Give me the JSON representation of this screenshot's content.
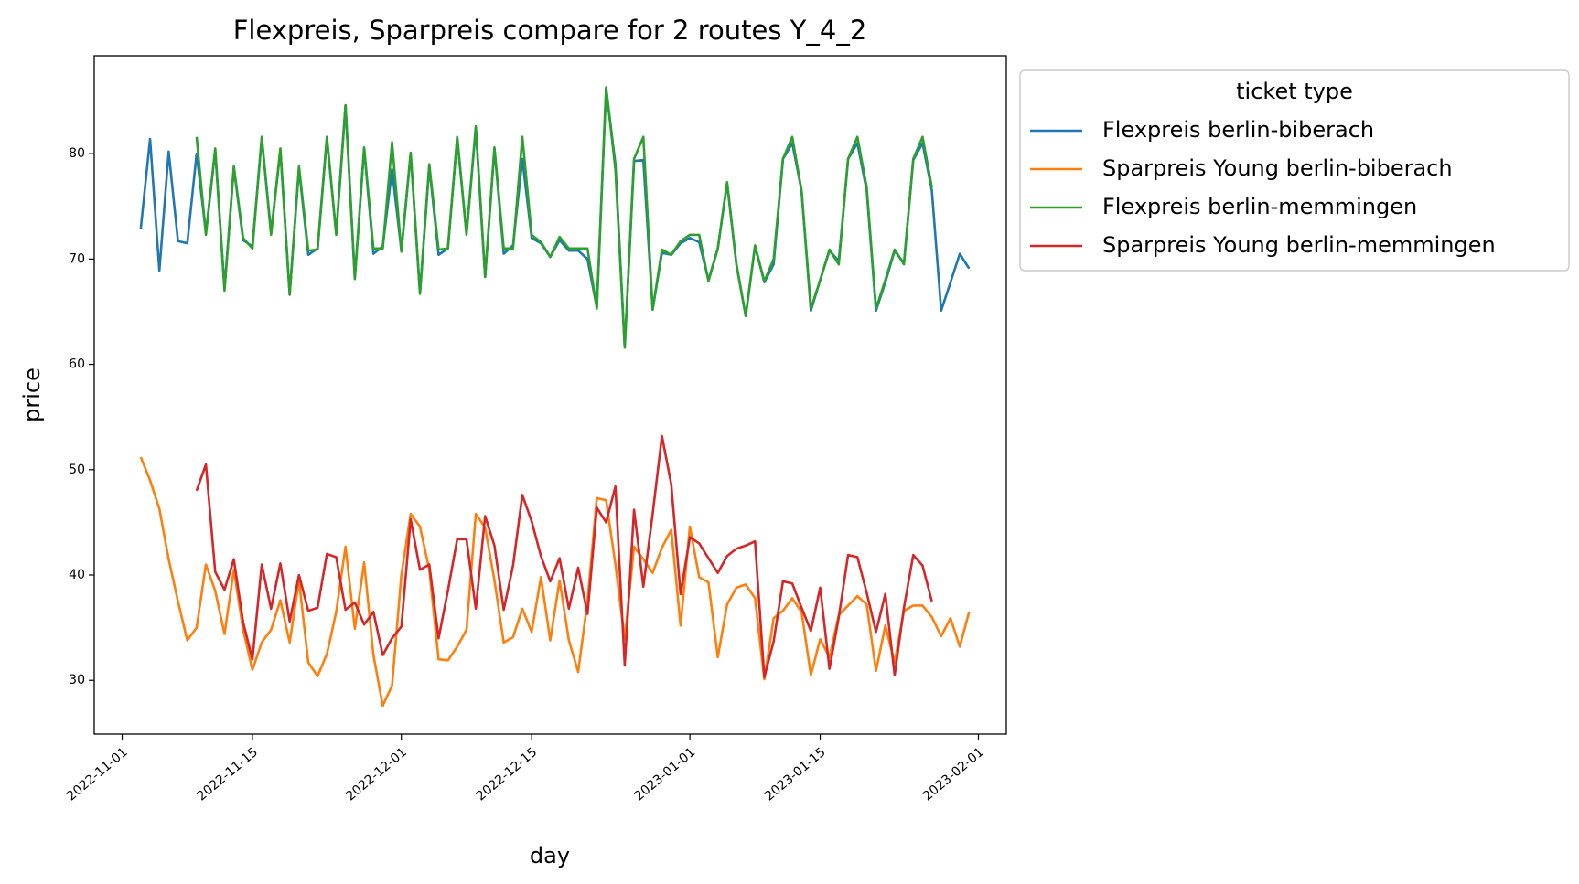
{
  "chart_data": {
    "type": "line",
    "title": "Flexpreis, Sparpreis compare for 2 routes Y_4_2",
    "x_label": "day",
    "y_label": "price",
    "legend_title": "ticket type",
    "legend_position": "outside-upper-right",
    "x": [
      "2022-11-03",
      "2022-11-04",
      "2022-11-05",
      "2022-11-06",
      "2022-11-07",
      "2022-11-08",
      "2022-11-09",
      "2022-11-10",
      "2022-11-11",
      "2022-11-12",
      "2022-11-13",
      "2022-11-14",
      "2022-11-15",
      "2022-11-16",
      "2022-11-17",
      "2022-11-18",
      "2022-11-19",
      "2022-11-20",
      "2022-11-21",
      "2022-11-22",
      "2022-11-23",
      "2022-11-24",
      "2022-11-25",
      "2022-11-26",
      "2022-11-27",
      "2022-11-28",
      "2022-11-29",
      "2022-11-30",
      "2022-12-01",
      "2022-12-02",
      "2022-12-03",
      "2022-12-04",
      "2022-12-05",
      "2022-12-06",
      "2022-12-07",
      "2022-12-08",
      "2022-12-09",
      "2022-12-10",
      "2022-12-11",
      "2022-12-12",
      "2022-12-13",
      "2022-12-14",
      "2022-12-15",
      "2022-12-16",
      "2022-12-17",
      "2022-12-18",
      "2022-12-19",
      "2022-12-20",
      "2022-12-21",
      "2022-12-22",
      "2022-12-23",
      "2022-12-24",
      "2022-12-25",
      "2022-12-26",
      "2022-12-27",
      "2022-12-28",
      "2022-12-29",
      "2022-12-30",
      "2022-12-31",
      "2023-01-01",
      "2023-01-02",
      "2023-01-03",
      "2023-01-04",
      "2023-01-05",
      "2023-01-06",
      "2023-01-07",
      "2023-01-08",
      "2023-01-09",
      "2023-01-10",
      "2023-01-11",
      "2023-01-12",
      "2023-01-13",
      "2023-01-14",
      "2023-01-15",
      "2023-01-16",
      "2023-01-17",
      "2023-01-18",
      "2023-01-19",
      "2023-01-20",
      "2023-01-21",
      "2023-01-22",
      "2023-01-23",
      "2023-01-24",
      "2023-01-25",
      "2023-01-26",
      "2023-01-27",
      "2023-01-28",
      "2023-01-29",
      "2023-01-30",
      "2023-01-31"
    ],
    "series": [
      {
        "name": "Flexpreis berlin-biberach",
        "color": "#1f77b4",
        "values": [
          72.9,
          81.4,
          68.9,
          80.2,
          71.7,
          71.5,
          80.0,
          72.5,
          80.3,
          67.2,
          78.7,
          71.8,
          71.2,
          81.5,
          72.5,
          80.3,
          66.7,
          78.6,
          70.4,
          71.0,
          81.5,
          72.4,
          84.6,
          68.2,
          80.5,
          70.5,
          71.2,
          78.5,
          70.8,
          80.0,
          66.8,
          78.8,
          70.4,
          71.0,
          81.5,
          72.4,
          82.4,
          68.3,
          80.5,
          70.5,
          71.3,
          79.5,
          72.0,
          71.5,
          70.2,
          71.8,
          70.8,
          70.8,
          70.0,
          65.4,
          86.2,
          79.0,
          61.6,
          79.3,
          79.4,
          65.2,
          70.6,
          70.4,
          71.5,
          72.0,
          71.6,
          68.0,
          71.0,
          77.2,
          69.5,
          64.6,
          71.2,
          67.8,
          69.5,
          79.5,
          81.0,
          76.5,
          65.1,
          68.0,
          70.8,
          69.8,
          79.5,
          81.0,
          76.5,
          65.1,
          67.8,
          70.8,
          69.6,
          79.4,
          81.0,
          76.5,
          65.1,
          67.8,
          70.5,
          69.1
        ]
      },
      {
        "name": "Sparpreis Young berlin-biberach",
        "color": "#ff7f0e",
        "values": [
          51.2,
          49.0,
          46.3,
          41.5,
          37.5,
          33.8,
          35.0,
          41.0,
          38.5,
          34.4,
          40.5,
          34.8,
          31.0,
          33.6,
          34.8,
          37.6,
          33.6,
          39.5,
          31.7,
          30.4,
          32.5,
          36.5,
          42.7,
          34.9,
          41.2,
          32.4,
          27.6,
          29.5,
          40.0,
          45.8,
          44.6,
          40.5,
          32.0,
          31.9,
          33.2,
          34.8,
          45.8,
          44.5,
          39.5,
          33.6,
          34.1,
          36.8,
          34.6,
          39.8,
          33.8,
          39.5,
          33.8,
          30.8,
          37.5,
          47.3,
          47.1,
          41.0,
          33.9,
          42.7,
          41.5,
          40.2,
          42.6,
          44.3,
          35.2,
          44.6,
          39.8,
          39.3,
          32.2,
          37.2,
          38.8,
          39.1,
          37.8,
          30.1,
          35.9,
          36.6,
          37.8,
          36.5,
          30.5,
          33.9,
          32.2,
          36.2,
          37.1,
          38.0,
          37.2,
          30.9,
          35.2,
          31.7,
          36.6,
          37.1,
          37.1,
          36.0,
          34.2,
          35.9,
          33.2,
          36.5
        ]
      },
      {
        "name": "Flexpreis berlin-memmingen",
        "color": "#2ca02c",
        "values": [
          null,
          null,
          null,
          null,
          null,
          null,
          81.6,
          72.3,
          80.5,
          67.0,
          78.8,
          72.0,
          71.0,
          81.6,
          72.3,
          80.5,
          66.6,
          78.8,
          70.8,
          70.9,
          81.6,
          72.3,
          84.6,
          68.1,
          80.6,
          71.0,
          71.0,
          81.1,
          70.7,
          80.1,
          66.7,
          79.0,
          70.9,
          71.0,
          81.6,
          72.3,
          82.6,
          68.3,
          80.6,
          71.0,
          71.0,
          81.6,
          72.3,
          71.6,
          70.2,
          72.1,
          71.0,
          71.0,
          71.0,
          65.3,
          86.3,
          78.5,
          61.6,
          79.5,
          81.6,
          65.2,
          70.9,
          70.4,
          71.7,
          72.3,
          72.3,
          67.9,
          71.0,
          77.3,
          69.5,
          64.6,
          71.3,
          67.9,
          70.0,
          79.5,
          81.6,
          76.5,
          65.3,
          68.0,
          70.9,
          69.5,
          79.5,
          81.6,
          76.8,
          65.3,
          68.0,
          70.9,
          69.5,
          79.5,
          81.6,
          76.8,
          null,
          null,
          null,
          null
        ]
      },
      {
        "name": "Sparpreis Young berlin-memmingen",
        "color": "#d62728",
        "values": [
          null,
          null,
          null,
          null,
          null,
          null,
          48.0,
          50.5,
          40.3,
          38.6,
          41.5,
          35.5,
          32.0,
          41.0,
          36.8,
          41.1,
          35.6,
          40.0,
          36.6,
          36.9,
          42.0,
          41.7,
          36.7,
          37.4,
          35.3,
          36.5,
          32.4,
          34.0,
          35.1,
          45.3,
          40.5,
          41.0,
          34.0,
          38.5,
          43.4,
          43.4,
          36.8,
          45.6,
          42.8,
          36.7,
          40.9,
          47.6,
          45.1,
          41.8,
          39.4,
          41.6,
          36.8,
          40.7,
          36.3,
          46.4,
          45.0,
          48.4,
          31.4,
          46.2,
          38.9,
          45.8,
          53.2,
          48.6,
          38.2,
          43.6,
          43.0,
          41.6,
          40.2,
          41.8,
          42.5,
          42.8,
          43.2,
          30.3,
          33.7,
          39.4,
          39.2,
          36.9,
          34.7,
          38.8,
          31.1,
          36.0,
          41.9,
          41.7,
          38.3,
          34.6,
          38.2,
          30.5,
          36.9,
          41.9,
          40.9,
          37.5,
          null,
          null,
          null,
          null
        ]
      }
    ],
    "xlim": [
      "2022-10-29",
      "2023-02-04"
    ],
    "xticks": [
      "2022-11-01",
      "2022-11-15",
      "2022-12-01",
      "2022-12-15",
      "2023-01-01",
      "2023-01-15",
      "2023-02-01"
    ],
    "ylim": [
      24.9,
      89.3
    ],
    "yticks": [
      30,
      40,
      50,
      60,
      70,
      80
    ],
    "grid": false
  }
}
